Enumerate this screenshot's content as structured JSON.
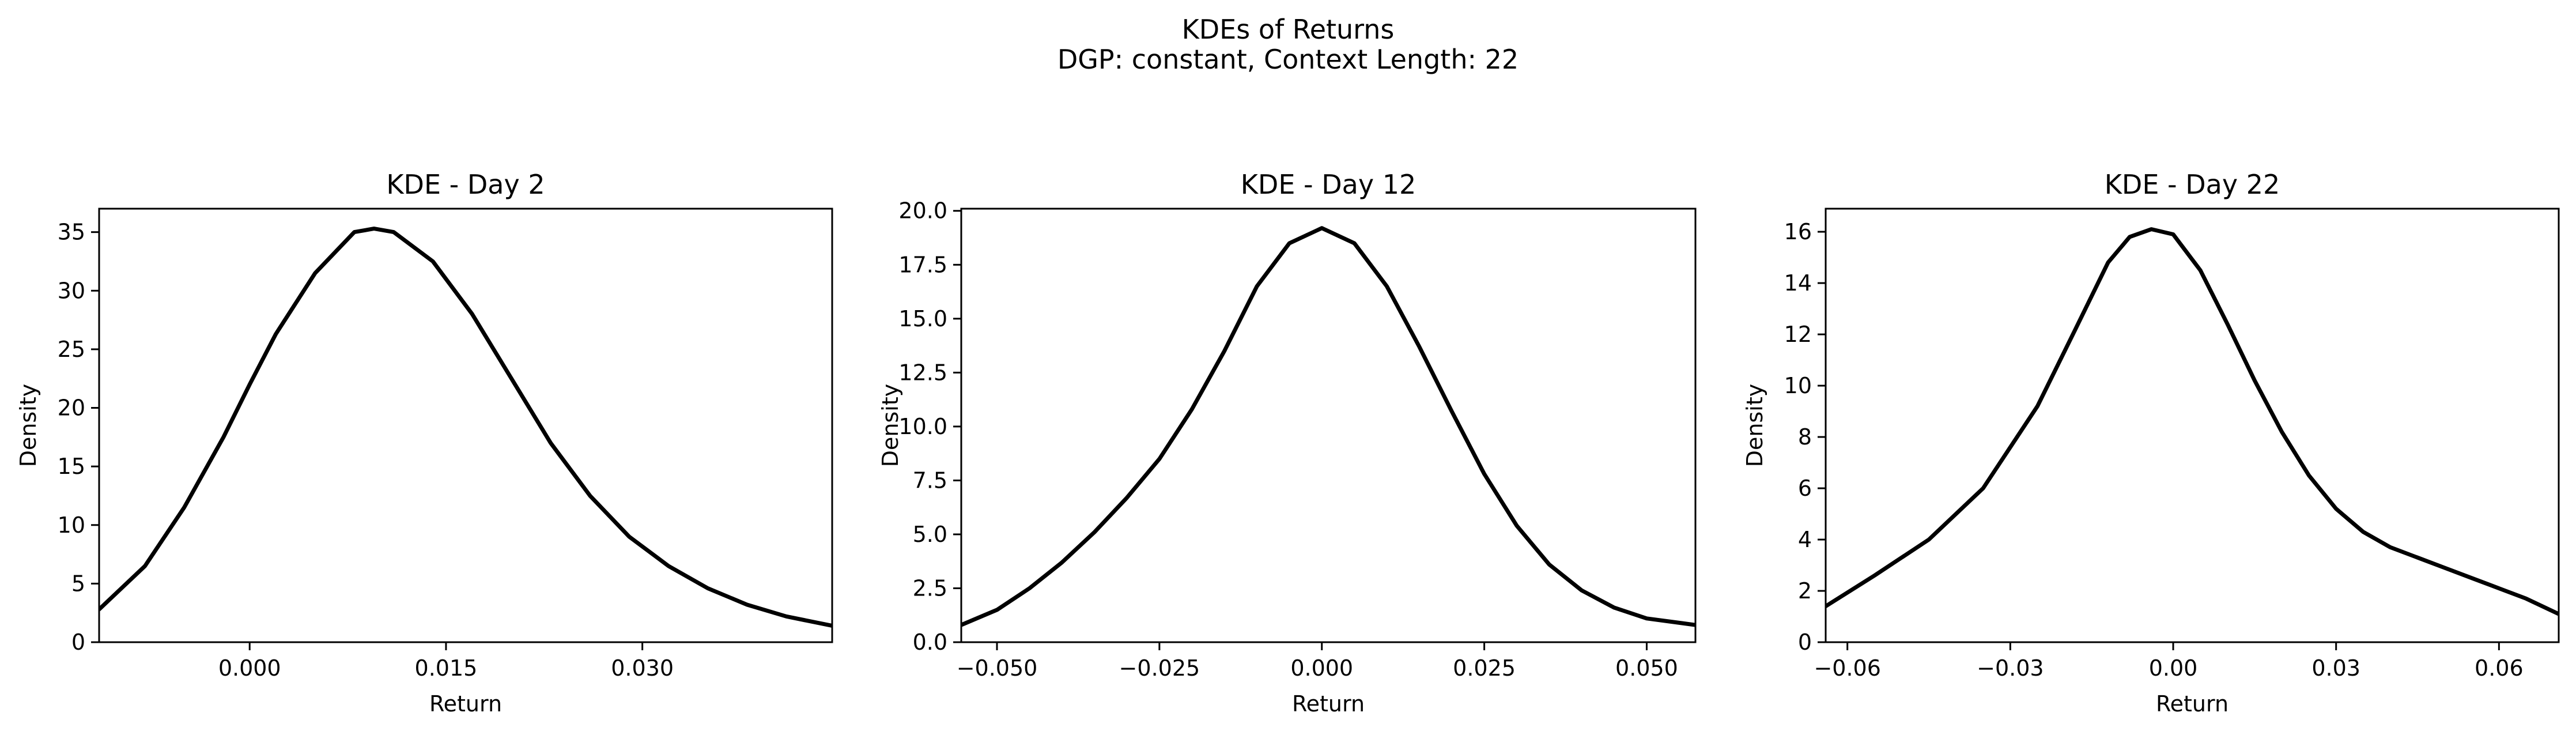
{
  "figure": {
    "suptitle_line1": "KDEs of Returns",
    "suptitle_line2": "DGP: constant, Context Length: 22"
  },
  "chart_data": [
    {
      "type": "line",
      "title": "KDE - Day 2",
      "xlabel": "Return",
      "ylabel": "Density",
      "xlim": [
        -0.0115,
        0.0445
      ],
      "ylim": [
        0,
        37
      ],
      "xticks": [
        0.0,
        0.015,
        0.03
      ],
      "xtick_labels": [
        "0.000",
        "0.015",
        "0.030"
      ],
      "yticks": [
        0,
        5,
        10,
        15,
        20,
        25,
        30,
        35
      ],
      "ytick_labels": [
        "0",
        "5",
        "10",
        "15",
        "20",
        "25",
        "30",
        "35"
      ],
      "grid": false,
      "legend": "none",
      "color": "#000000",
      "series": [
        {
          "x": [
            -0.0115,
            -0.008,
            -0.005,
            -0.002,
            0.0,
            0.002,
            0.005,
            0.008,
            0.0095,
            0.011,
            0.014,
            0.017,
            0.02,
            0.023,
            0.026,
            0.029,
            0.032,
            0.035,
            0.038,
            0.041,
            0.0445
          ],
          "y": [
            2.8,
            6.5,
            11.5,
            17.5,
            22.0,
            26.3,
            31.5,
            35.0,
            35.3,
            35.0,
            32.5,
            28.0,
            22.5,
            17.0,
            12.5,
            9.0,
            6.5,
            4.6,
            3.2,
            2.2,
            1.4
          ]
        }
      ]
    },
    {
      "type": "line",
      "title": "KDE - Day 12",
      "xlabel": "Return",
      "ylabel": "Density",
      "xlim": [
        -0.0555,
        0.0575
      ],
      "ylim": [
        0,
        20.1
      ],
      "xticks": [
        -0.05,
        -0.025,
        0.0,
        0.025,
        0.05
      ],
      "xtick_labels": [
        "−0.050",
        "−0.025",
        "0.000",
        "0.025",
        "0.050"
      ],
      "yticks": [
        0.0,
        2.5,
        5.0,
        7.5,
        10.0,
        12.5,
        15.0,
        17.5,
        20.0
      ],
      "ytick_labels": [
        "0.0",
        "2.5",
        "5.0",
        "7.5",
        "10.0",
        "12.5",
        "15.0",
        "17.5",
        "20.0"
      ],
      "grid": false,
      "legend": "none",
      "color": "#000000",
      "series": [
        {
          "x": [
            -0.0555,
            -0.05,
            -0.045,
            -0.04,
            -0.035,
            -0.03,
            -0.025,
            -0.02,
            -0.015,
            -0.01,
            -0.005,
            0.0,
            0.005,
            0.01,
            0.015,
            0.02,
            0.025,
            0.03,
            0.035,
            0.04,
            0.045,
            0.05,
            0.0575
          ],
          "y": [
            0.8,
            1.5,
            2.5,
            3.7,
            5.1,
            6.7,
            8.5,
            10.8,
            13.5,
            16.5,
            18.5,
            19.2,
            18.5,
            16.5,
            13.7,
            10.7,
            7.8,
            5.4,
            3.6,
            2.4,
            1.6,
            1.1,
            0.8
          ]
        }
      ]
    },
    {
      "type": "line",
      "title": "KDE - Day 22",
      "xlabel": "Return",
      "ylabel": "Density",
      "xlim": [
        -0.064,
        0.071
      ],
      "ylim": [
        0,
        16.9
      ],
      "xticks": [
        -0.06,
        -0.03,
        0.0,
        0.03,
        0.06
      ],
      "xtick_labels": [
        "−0.06",
        "−0.03",
        "0.00",
        "0.03",
        "0.06"
      ],
      "yticks": [
        0,
        2,
        4,
        6,
        8,
        10,
        12,
        14,
        16
      ],
      "ytick_labels": [
        "0",
        "2",
        "4",
        "6",
        "8",
        "10",
        "12",
        "14",
        "16"
      ],
      "grid": false,
      "legend": "none",
      "color": "#000000",
      "series": [
        {
          "x": [
            -0.064,
            -0.055,
            -0.045,
            -0.035,
            -0.025,
            -0.018,
            -0.012,
            -0.008,
            -0.004,
            0.0,
            0.005,
            0.01,
            0.015,
            0.02,
            0.025,
            0.03,
            0.035,
            0.04,
            0.045,
            0.05,
            0.055,
            0.06,
            0.065,
            0.071
          ],
          "y": [
            1.4,
            2.6,
            4.0,
            6.0,
            9.2,
            12.2,
            14.8,
            15.8,
            16.1,
            15.9,
            14.5,
            12.4,
            10.2,
            8.2,
            6.5,
            5.2,
            4.3,
            3.7,
            3.3,
            2.9,
            2.5,
            2.1,
            1.7,
            1.1
          ]
        }
      ]
    }
  ]
}
